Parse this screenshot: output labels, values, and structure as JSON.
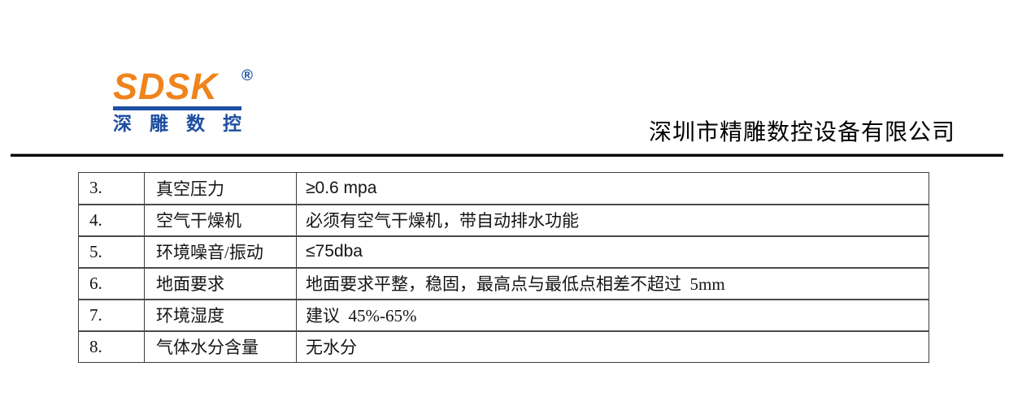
{
  "logo": {
    "brand": "SDSK",
    "registered_mark": "®",
    "subtitle_chars": [
      "深",
      "雕",
      "数",
      "控"
    ],
    "brand_color_orange": "#F0831C",
    "brand_color_blue": "#1C4FA0"
  },
  "header": {
    "company_name": "深圳市精雕数控设备有限公司"
  },
  "table": {
    "rows": [
      {
        "num": "3.",
        "label": "真空压力",
        "value": "≥0.6 mpa"
      },
      {
        "num": "4.",
        "label": "空气干燥机",
        "value": "必须有空气干燥机，带自动排水功能"
      },
      {
        "num": "5.",
        "label": "环境噪音/振动",
        "value": "≤75dba"
      },
      {
        "num": "6.",
        "label": "地面要求",
        "value": "地面要求平整，稳固，最高点与最低点相差不超过  5mm"
      },
      {
        "num": "7.",
        "label": "环境湿度",
        "value": "建议  45%-65%"
      },
      {
        "num": "8.",
        "label": "气体水分含量",
        "value": "无水分"
      }
    ]
  }
}
